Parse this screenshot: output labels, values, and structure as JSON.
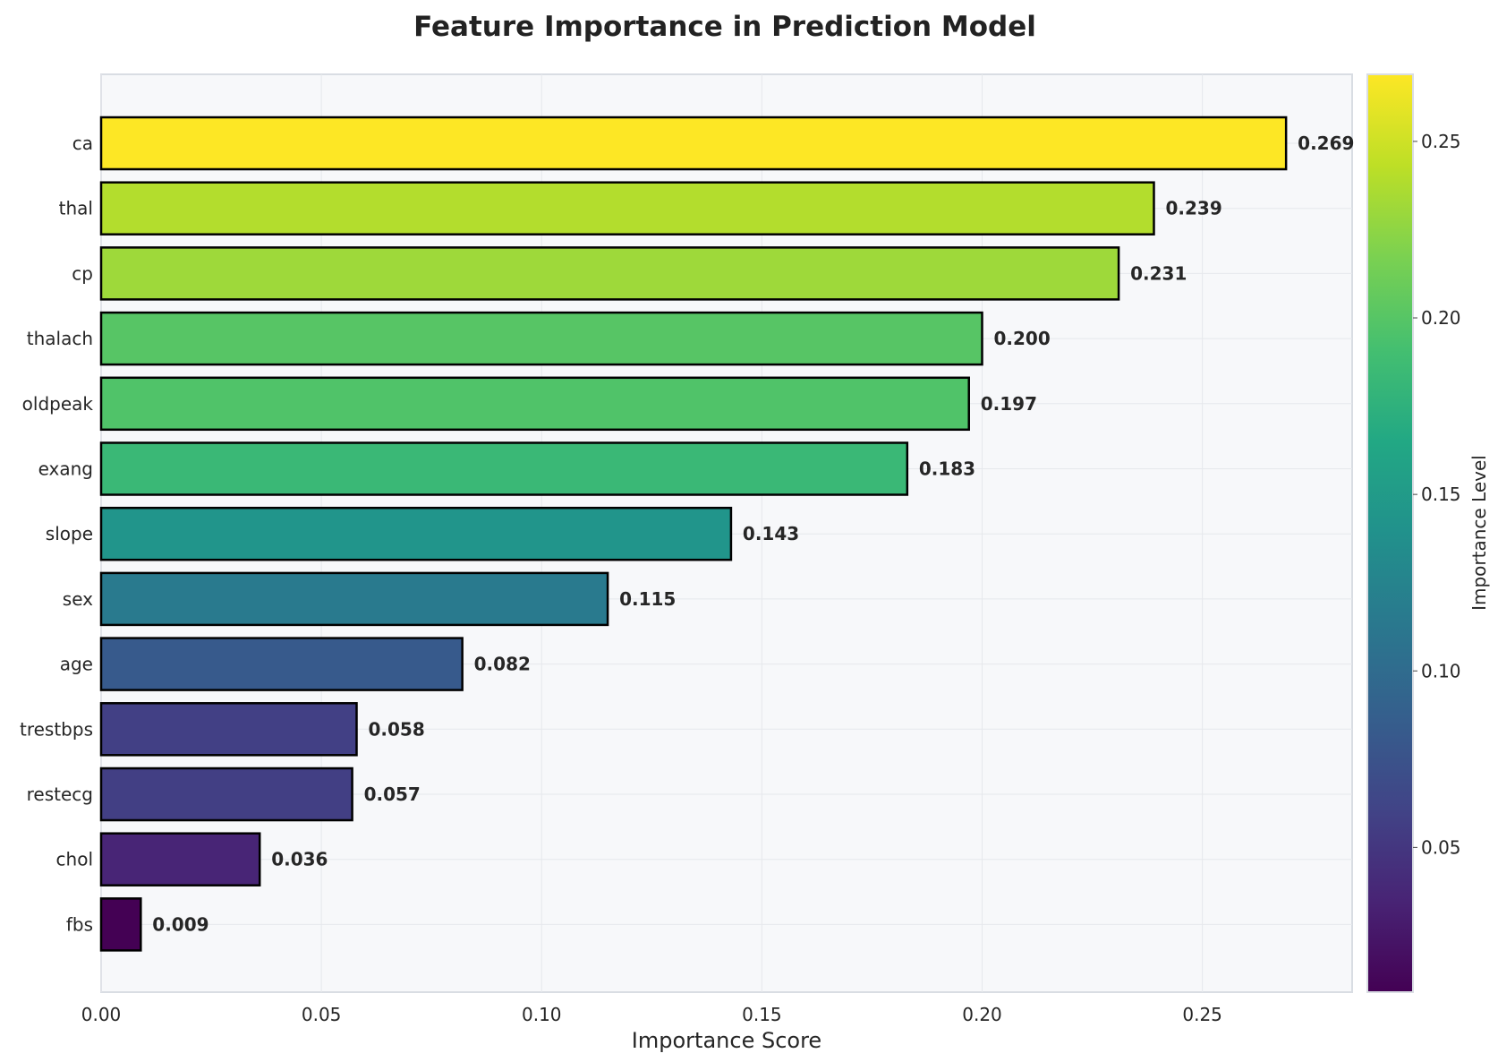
{
  "chart_data": {
    "type": "bar",
    "orientation": "horizontal",
    "title": "Feature Importance in Prediction Model",
    "xlabel": "Importance Score",
    "ylabel": "",
    "xlim": [
      0,
      0.284
    ],
    "x_ticks": [
      "0.00",
      "0.05",
      "0.10",
      "0.15",
      "0.20",
      "0.25"
    ],
    "x_tick_values": [
      0,
      0.05,
      0.1,
      0.15,
      0.2,
      0.25
    ],
    "grid": true,
    "categories": [
      "ca",
      "thal",
      "cp",
      "thalach",
      "oldpeak",
      "exang",
      "slope",
      "sex",
      "age",
      "trestbps",
      "restecg",
      "chol",
      "fbs"
    ],
    "values": [
      0.269,
      0.239,
      0.231,
      0.2,
      0.197,
      0.183,
      0.143,
      0.115,
      0.082,
      0.058,
      0.057,
      0.036,
      0.009
    ],
    "value_labels": [
      "0.269",
      "0.239",
      "0.231",
      "0.200",
      "0.197",
      "0.183",
      "0.143",
      "0.115",
      "0.082",
      "0.058",
      "0.057",
      "0.036",
      "0.009"
    ],
    "colormap": "viridis",
    "colorbar": {
      "label": "Importance Level",
      "range": [
        0.009,
        0.269
      ],
      "ticks": [
        "0.05",
        "0.10",
        "0.15",
        "0.20",
        "0.25"
      ],
      "tick_values": [
        0.05,
        0.1,
        0.15,
        0.2,
        0.25
      ]
    }
  },
  "colors": {
    "plot_background": "#f7f8fa",
    "frame": "#d9dde3",
    "bar_edge": "#000000"
  }
}
